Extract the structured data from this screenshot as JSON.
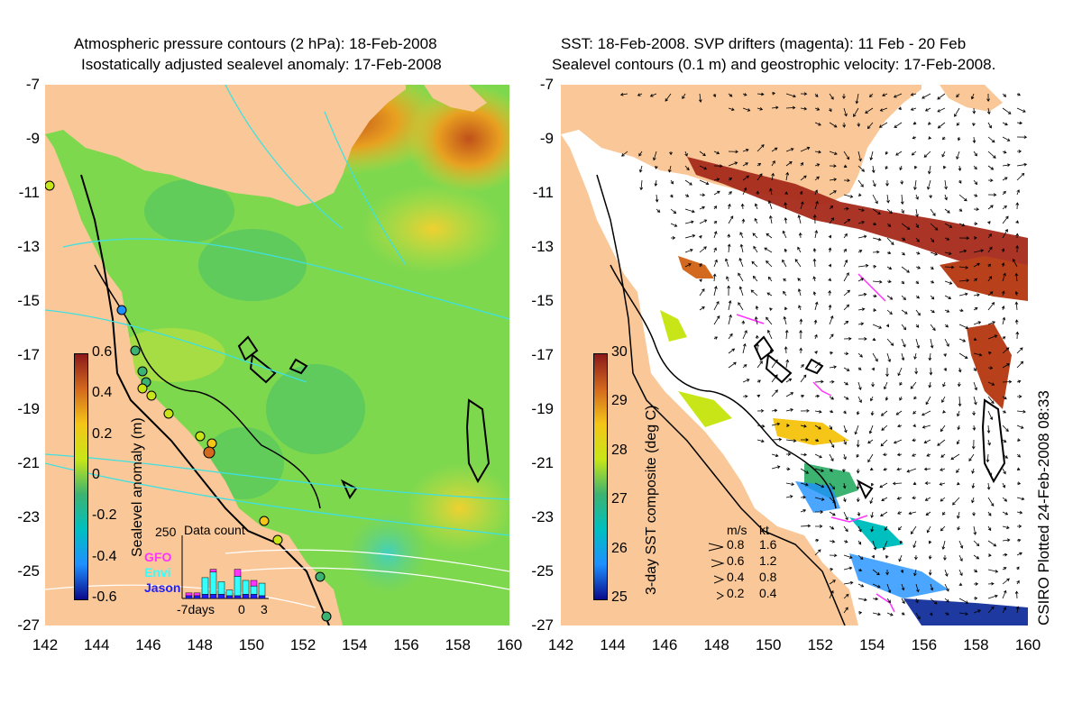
{
  "left_panel": {
    "title_line1": "Atmospheric pressure contours (2 hPa): 18-Feb-2008",
    "title_line2": "Isostatically adjusted sealevel anomaly: 17-Feb-2008",
    "colorbar": {
      "label": "Sealevel anomaly (m)",
      "ticks": [
        "0.6",
        "0.4",
        "0.2",
        "0",
        "-0.2",
        "-0.4",
        "-0.6"
      ],
      "colors": [
        "#8b1a1a",
        "#d2691e",
        "#f5c518",
        "#c8e617",
        "#3cb371",
        "#00bfbf",
        "#1e90ff",
        "#0a0a8b"
      ]
    },
    "inset": {
      "title": "Data count",
      "ymax": "250",
      "legend": [
        {
          "name": "GFO",
          "color": "#ff33ff"
        },
        {
          "name": "Envi",
          "color": "#33ffff"
        },
        {
          "name": "Jason",
          "color": "#2020ff"
        }
      ],
      "x_labels": [
        "-7days",
        "0",
        "3"
      ],
      "bars": [
        {
          "jason": 10,
          "envi": 0,
          "gfo": 10
        },
        {
          "jason": 10,
          "envi": 0,
          "gfo": 10
        },
        {
          "jason": 15,
          "envi": 60,
          "gfo": 0
        },
        {
          "jason": 15,
          "envi": 80,
          "gfo": 10
        },
        {
          "jason": 15,
          "envi": 45,
          "gfo": 0
        },
        {
          "jason": 10,
          "envi": 20,
          "gfo": 0
        },
        {
          "jason": 10,
          "envi": 70,
          "gfo": 25
        },
        {
          "jason": 15,
          "envi": 50,
          "gfo": 0
        },
        {
          "jason": 15,
          "envi": 30,
          "gfo": 20
        },
        {
          "jason": 10,
          "envi": 45,
          "gfo": 0
        }
      ]
    }
  },
  "right_panel": {
    "title_line1": "SST: 18-Feb-2008. SVP drifters (magenta): 11 Feb - 20 Feb",
    "title_line2": "Sealevel contours (0.1 m) and geostrophic velocity: 17-Feb-2008.",
    "colorbar": {
      "label": "3-day SST composite (deg C)",
      "ticks": [
        "30",
        "29",
        "28",
        "27",
        "26",
        "25"
      ],
      "colors": [
        "#8b1a1a",
        "#d2691e",
        "#f5c518",
        "#c8e617",
        "#3cb371",
        "#00bfbf",
        "#1e90ff",
        "#0a0a8b"
      ]
    },
    "velocity_legend": {
      "header_ms": "m/s",
      "header_kt": "kt",
      "rows": [
        {
          "ms": "0.8",
          "kt": "1.6"
        },
        {
          "ms": "0.6",
          "kt": "1.2"
        },
        {
          "ms": "0.4",
          "kt": "0.8"
        },
        {
          "ms": "0.2",
          "kt": "0.4"
        }
      ]
    },
    "credit": "CSIRO Plotted 24-Feb-2008 08:33"
  },
  "axes": {
    "lat_labels": [
      "-7",
      "-9",
      "-11",
      "-13",
      "-15",
      "-17",
      "-19",
      "-21",
      "-23",
      "-25",
      "-27"
    ],
    "lon_labels": [
      "142",
      "144",
      "146",
      "148",
      "150",
      "152",
      "154",
      "156",
      "158",
      "160"
    ]
  }
}
